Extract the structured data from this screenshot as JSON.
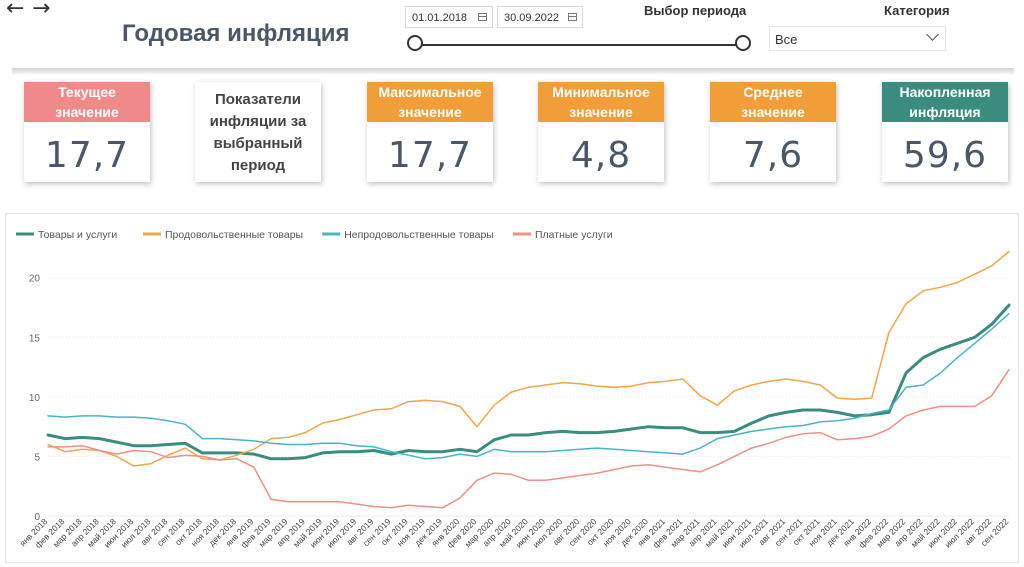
{
  "header": {
    "title": "Годовая инфляция",
    "date_start": "01.01.2018",
    "date_end": "30.09.2022",
    "period_label": "Выбор периода",
    "category_label": "Категория",
    "category_value": "Все",
    "period_range": [
      0,
      1
    ]
  },
  "cards": {
    "current": {
      "label_line1": "Текущее",
      "label_line2": "значение",
      "value": "17,7",
      "color": "#f08a8a"
    },
    "info": {
      "line1": "Показатели",
      "line2": "инфляции за",
      "line3": "выбранный",
      "line4": "период"
    },
    "max": {
      "label_line1": "Максимальное",
      "label_line2": "значение",
      "value": "17,7",
      "color": "#f29e38"
    },
    "min": {
      "label_line1": "Минимальное",
      "label_line2": "значение",
      "value": "4,8",
      "color": "#f29e38"
    },
    "avg": {
      "label_line1": "Среднее",
      "label_line2": "значение",
      "value": "7,6",
      "color": "#f29e38"
    },
    "cumulative": {
      "label_line1": "Накопленная",
      "label_line2": "инфляция",
      "value": "59,6",
      "color": "#3a8c7e"
    }
  },
  "chart_data": {
    "type": "line",
    "categories": [
      "янв 2018",
      "фев 2018",
      "мар 2018",
      "апр 2018",
      "май 2018",
      "июн 2018",
      "июл 2018",
      "авг 2018",
      "сен 2018",
      "окт 2018",
      "ноя 2018",
      "дек 2018",
      "янв 2019",
      "фев 2019",
      "мар 2019",
      "апр 2019",
      "май 2019",
      "июн 2019",
      "июл 2019",
      "авг 2019",
      "сен 2019",
      "окт 2019",
      "ноя 2019",
      "дек 2019",
      "янв 2020",
      "фев 2020",
      "мар 2020",
      "апр 2020",
      "май 2020",
      "июн 2020",
      "июл 2020",
      "авг 2020",
      "сен 2020",
      "окт 2020",
      "ноя 2020",
      "дек 2020",
      "янв 2021",
      "фев 2021",
      "мар 2021",
      "апр 2021",
      "май 2021",
      "июн 2021",
      "июл 2021",
      "авг 2021",
      "сен 2021",
      "окт 2021",
      "ноя 2021",
      "дек 2021",
      "янв 2022",
      "фев 2022",
      "мар 2022",
      "апр 2022",
      "май 2022",
      "июн 2022",
      "июл 2022",
      "авг 2022",
      "сен 2022"
    ],
    "yticks": [
      0,
      5,
      10,
      15,
      20
    ],
    "ylim": [
      0,
      23
    ],
    "legend_position": "top-left",
    "series": [
      {
        "name": "Товары и услуги",
        "color": "#3a8c7e",
        "width": 3,
        "values": [
          6.8,
          6.5,
          6.6,
          6.5,
          6.2,
          5.9,
          5.9,
          6.0,
          6.1,
          5.3,
          5.3,
          5.3,
          5.2,
          4.8,
          4.8,
          4.9,
          5.3,
          5.4,
          5.4,
          5.5,
          5.2,
          5.5,
          5.4,
          5.4,
          5.6,
          5.4,
          6.4,
          6.8,
          6.8,
          7.0,
          7.1,
          7.0,
          7.0,
          7.1,
          7.3,
          7.5,
          7.4,
          7.4,
          7.0,
          7.0,
          7.1,
          7.8,
          8.4,
          8.7,
          8.9,
          8.9,
          8.7,
          8.4,
          8.5,
          8.7,
          12.0,
          13.3,
          14.0,
          14.5,
          15.0,
          16.1,
          17.7
        ]
      },
      {
        "name": "Продовольственные товары",
        "color": "#f2a54a",
        "width": 1.5,
        "values": [
          6.0,
          5.4,
          5.6,
          5.5,
          5.0,
          4.2,
          4.4,
          5.1,
          5.7,
          4.8,
          4.7,
          5.1,
          5.6,
          6.5,
          6.6,
          7.0,
          7.8,
          8.1,
          8.5,
          8.9,
          9.0,
          9.6,
          9.7,
          9.6,
          9.2,
          7.5,
          9.3,
          10.4,
          10.8,
          11.0,
          11.2,
          11.1,
          10.9,
          10.8,
          10.9,
          11.2,
          11.3,
          11.5,
          10.1,
          9.3,
          10.5,
          11.0,
          11.3,
          11.5,
          11.3,
          11.0,
          9.9,
          9.8,
          9.9,
          15.4,
          17.8,
          18.9,
          19.2,
          19.6,
          20.3,
          21.0,
          22.2
        ]
      },
      {
        "name": "Непродовольственные товары",
        "color": "#49b3c7",
        "width": 1.5,
        "values": [
          8.4,
          8.3,
          8.4,
          8.4,
          8.3,
          8.3,
          8.2,
          8.0,
          7.7,
          6.5,
          6.5,
          6.4,
          6.3,
          6.1,
          6.0,
          6.0,
          6.1,
          6.1,
          5.9,
          5.8,
          5.4,
          5.1,
          4.8,
          4.9,
          5.2,
          5.0,
          5.6,
          5.4,
          5.4,
          5.4,
          5.5,
          5.6,
          5.7,
          5.6,
          5.5,
          5.4,
          5.3,
          5.2,
          5.7,
          6.5,
          6.8,
          7.1,
          7.3,
          7.5,
          7.6,
          7.9,
          8.0,
          8.2,
          8.6,
          8.9,
          10.8,
          11.0,
          12.0,
          13.3,
          14.5,
          15.7,
          17.0
        ]
      },
      {
        "name": "Платные услуги",
        "color": "#ef8f86",
        "width": 1.5,
        "values": [
          5.8,
          5.8,
          5.9,
          5.5,
          5.2,
          5.5,
          5.4,
          4.9,
          5.1,
          5.0,
          4.7,
          4.8,
          4.1,
          1.4,
          1.2,
          1.2,
          1.2,
          1.2,
          1.0,
          0.8,
          0.7,
          0.9,
          0.8,
          0.7,
          1.5,
          3.0,
          3.6,
          3.5,
          3.0,
          3.0,
          3.2,
          3.4,
          3.6,
          3.9,
          4.2,
          4.3,
          4.1,
          3.9,
          3.7,
          4.3,
          5.0,
          5.7,
          6.1,
          6.6,
          6.9,
          7.0,
          6.4,
          6.5,
          6.7,
          7.3,
          8.4,
          8.9,
          9.2,
          9.2,
          9.2,
          10.1,
          12.3
        ]
      }
    ]
  }
}
